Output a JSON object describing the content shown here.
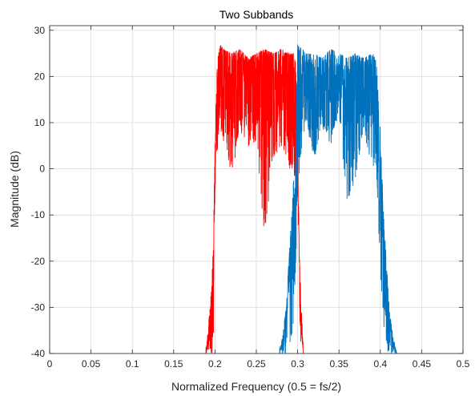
{
  "chart_data": {
    "type": "line",
    "title": "Two Subbands",
    "xlabel": "Normalized Frequency (0.5 = fs/2)",
    "ylabel": "Magnitude (dB)",
    "xlim": [
      0,
      0.5
    ],
    "ylim": [
      -40,
      31
    ],
    "x_ticks": [
      0,
      0.05,
      0.1,
      0.15,
      0.2,
      0.25,
      0.3,
      0.35,
      0.4,
      0.45,
      0.5
    ],
    "x_tick_labels": [
      "0",
      "0.05",
      "0.1",
      "0.15",
      "0.2",
      "0.25",
      "0.3",
      "0.35",
      "0.4",
      "0.45",
      "0.5"
    ],
    "y_ticks": [
      -40,
      -30,
      -20,
      -10,
      0,
      10,
      20,
      30
    ],
    "y_tick_labels": [
      "-40",
      "-30",
      "-20",
      "-10",
      "0",
      "10",
      "20",
      "30"
    ],
    "grid": true,
    "series": [
      {
        "color": "#ff0000",
        "x": [
          0.189,
          0.193,
          0.196,
          0.198,
          0.2,
          0.202,
          0.204,
          0.207,
          0.21,
          0.22,
          0.23,
          0.24,
          0.25,
          0.26,
          0.27,
          0.28,
          0.29,
          0.297,
          0.3,
          0.302,
          0.304,
          0.306,
          0.307
        ],
        "y": [
          -40,
          -32,
          -25,
          -16,
          5,
          20,
          25,
          27,
          26,
          25,
          26,
          24,
          25,
          26,
          25,
          26,
          25,
          25,
          10,
          -18,
          -28,
          -36,
          -40
        ],
        "y_low": [
          -40,
          -40,
          -40,
          -40,
          -5,
          2,
          5,
          8,
          6,
          -2,
          8,
          4,
          6,
          -16,
          2,
          5,
          0,
          -3,
          -8,
          -30,
          -40,
          -40,
          -40
        ]
      },
      {
        "color": "#0072bd",
        "x": [
          0.278,
          0.282,
          0.286,
          0.29,
          0.294,
          0.298,
          0.3,
          0.305,
          0.31,
          0.32,
          0.33,
          0.34,
          0.35,
          0.36,
          0.37,
          0.38,
          0.39,
          0.395,
          0.4,
          0.404,
          0.408,
          0.412,
          0.416,
          0.42
        ],
        "y": [
          -40,
          -36,
          -30,
          -18,
          -6,
          10,
          27,
          26,
          25,
          25,
          24,
          26,
          25,
          24,
          25,
          24,
          25,
          24,
          8,
          -10,
          -22,
          -32,
          -37,
          -40
        ],
        "y_low": [
          -40,
          -40,
          -40,
          -40,
          -36,
          -20,
          -5,
          5,
          10,
          2,
          8,
          5,
          12,
          -8,
          -2,
          8,
          0,
          0,
          -22,
          -34,
          -40,
          -40,
          -40,
          -40
        ]
      }
    ]
  }
}
